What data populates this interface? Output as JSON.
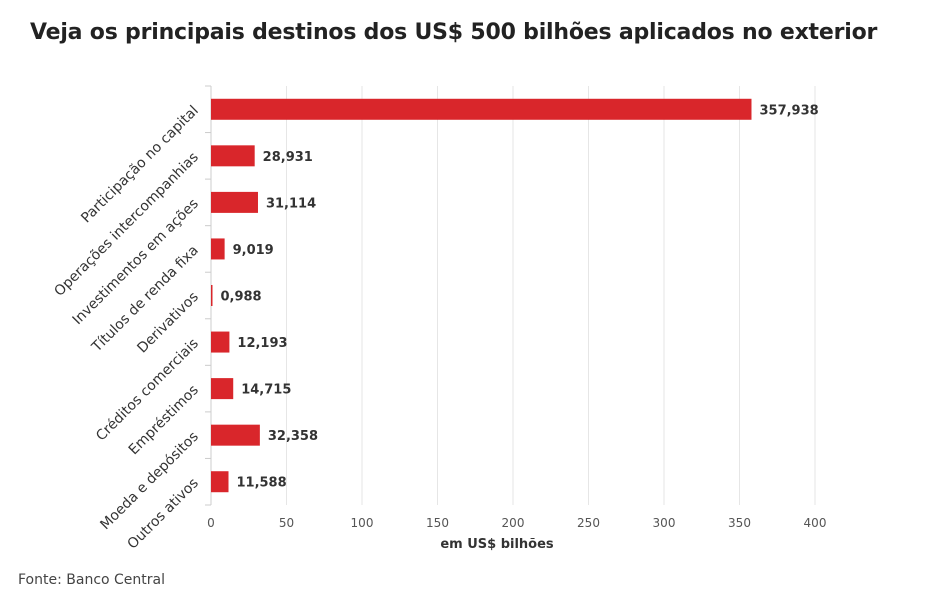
{
  "title": "Veja os principais destinos dos US$ 500 bilhões aplicados no exterior",
  "source": "Fonte: Banco Central",
  "colors": {
    "bar": "#d9262b",
    "grid": "#e6e6e6",
    "text": "#333333"
  },
  "chart_data": {
    "type": "bar",
    "orientation": "horizontal",
    "categories": [
      "Participação no capital",
      "Operações intercompanhias",
      "Investimentos em ações",
      "Títulos de renda fixa",
      "Derivativos",
      "Créditos comerciais",
      "Empréstimos",
      "Moeda e depósitos",
      "Outros ativos"
    ],
    "values": [
      357.938,
      28.931,
      31.114,
      9.019,
      0.988,
      12.193,
      14.715,
      32.358,
      11.588
    ],
    "value_labels": [
      "357,938",
      "28,931",
      "31,114",
      "9,019",
      "0,988",
      "12,193",
      "14,715",
      "32,358",
      "11,588"
    ],
    "xlabel": "em US$ bilhões",
    "ylabel": "",
    "xlim": [
      0,
      400
    ],
    "xticks": [
      0,
      50,
      100,
      150,
      200,
      250,
      300,
      350,
      400
    ],
    "grid": true
  }
}
